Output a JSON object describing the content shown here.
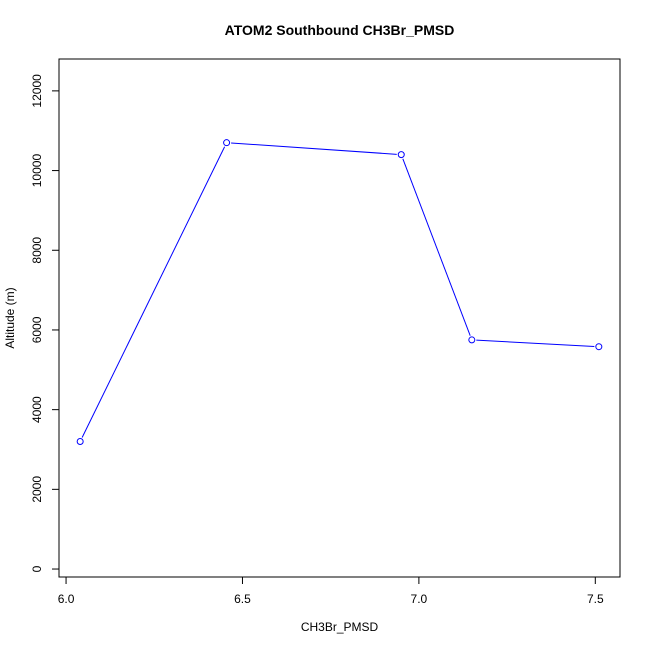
{
  "chart_data": {
    "type": "line",
    "title": "ATOM2 Southbound CH3Br_PMSD",
    "xlabel": "CH3Br_PMSD",
    "ylabel": "Altitude (m)",
    "xlim": [
      5.98,
      7.57
    ],
    "ylim": [
      -200,
      12800
    ],
    "xticks": [
      6.0,
      6.5,
      7.0,
      7.5
    ],
    "xtick_labels": [
      "6.0",
      "6.5",
      "7.0",
      "7.5"
    ],
    "yticks": [
      0,
      2000,
      4000,
      6000,
      8000,
      10000,
      12000
    ],
    "ytick_labels": [
      "0",
      "2000",
      "4000",
      "6000",
      "8000",
      "10000",
      "12000"
    ],
    "grid": false,
    "series": [
      {
        "color": "#0000ff",
        "marker": "open-circle",
        "x": [
          6.04,
          6.455,
          6.95,
          7.15,
          7.51
        ],
        "y": [
          3200,
          10700,
          10400,
          5750,
          5580
        ]
      }
    ]
  }
}
